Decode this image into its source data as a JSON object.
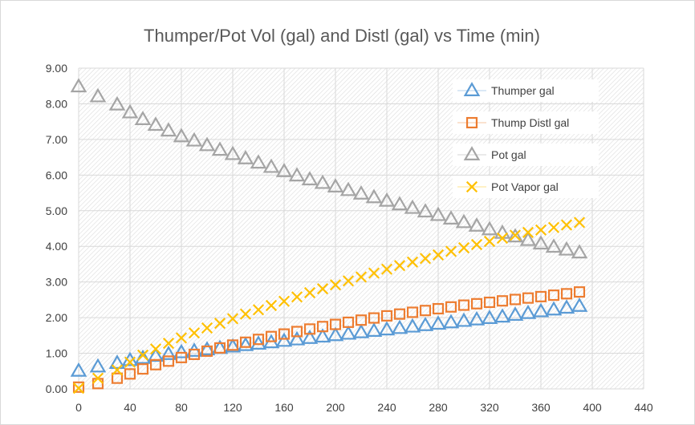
{
  "chart_data": {
    "type": "scatter",
    "title": "Thumper/Pot Vol (gal) and Distl (gal) vs Time (min)",
    "xlabel": "",
    "ylabel": "",
    "xlim": [
      0,
      440
    ],
    "ylim": [
      0,
      9
    ],
    "x_ticks": [
      0,
      40,
      80,
      120,
      160,
      200,
      240,
      280,
      320,
      360,
      400,
      440
    ],
    "x_tick_labels": [
      "0",
      "40",
      "80",
      "120",
      "160",
      "200",
      "240",
      "280",
      "320",
      "360",
      "400",
      "440"
    ],
    "y_ticks": [
      0,
      1,
      2,
      3,
      4,
      5,
      6,
      7,
      8,
      9
    ],
    "y_tick_labels": [
      "0.00",
      "1.00",
      "2.00",
      "3.00",
      "4.00",
      "5.00",
      "6.00",
      "7.00",
      "8.00",
      "9.00"
    ],
    "grid": true,
    "legend": "top-right",
    "series": [
      {
        "name": "Thumper gal",
        "marker": "triangle",
        "color": "#5B9BD5",
        "x": [
          0,
          15,
          30,
          40,
          50,
          60,
          70,
          80,
          90,
          100,
          110,
          120,
          130,
          140,
          150,
          160,
          170,
          180,
          190,
          200,
          210,
          220,
          230,
          240,
          250,
          260,
          270,
          280,
          290,
          300,
          310,
          320,
          330,
          340,
          350,
          360,
          370,
          380,
          390
        ],
        "y": [
          0.5,
          0.62,
          0.72,
          0.8,
          0.86,
          0.92,
          0.97,
          1.02,
          1.06,
          1.1,
          1.14,
          1.18,
          1.22,
          1.26,
          1.3,
          1.34,
          1.38,
          1.42,
          1.46,
          1.5,
          1.54,
          1.58,
          1.62,
          1.66,
          1.7,
          1.74,
          1.78,
          1.82,
          1.86,
          1.9,
          1.94,
          1.98,
          2.02,
          2.07,
          2.12,
          2.17,
          2.22,
          2.27,
          2.32
        ]
      },
      {
        "name": "Thump Distl gal",
        "marker": "square",
        "color": "#ED7D31",
        "x": [
          0,
          15,
          30,
          40,
          50,
          60,
          70,
          80,
          90,
          100,
          110,
          120,
          130,
          140,
          150,
          160,
          170,
          180,
          190,
          200,
          210,
          220,
          230,
          240,
          250,
          260,
          270,
          280,
          290,
          300,
          310,
          320,
          330,
          340,
          350,
          360,
          370,
          380,
          390
        ],
        "y": [
          0.05,
          0.15,
          0.3,
          0.42,
          0.56,
          0.68,
          0.78,
          0.88,
          0.97,
          1.06,
          1.15,
          1.23,
          1.31,
          1.39,
          1.47,
          1.54,
          1.61,
          1.68,
          1.75,
          1.81,
          1.87,
          1.93,
          1.99,
          2.05,
          2.1,
          2.15,
          2.2,
          2.25,
          2.3,
          2.35,
          2.39,
          2.43,
          2.47,
          2.51,
          2.55,
          2.59,
          2.63,
          2.67,
          2.72
        ]
      },
      {
        "name": "Pot  gal",
        "marker": "triangle",
        "color": "#A5A5A5",
        "x": [
          0,
          15,
          30,
          40,
          50,
          60,
          70,
          80,
          90,
          100,
          110,
          120,
          130,
          140,
          150,
          160,
          170,
          180,
          190,
          200,
          210,
          220,
          230,
          240,
          250,
          260,
          270,
          280,
          290,
          300,
          310,
          320,
          330,
          340,
          350,
          360,
          370,
          380,
          390
        ],
        "y": [
          8.48,
          8.2,
          7.97,
          7.75,
          7.56,
          7.4,
          7.24,
          7.08,
          6.96,
          6.83,
          6.7,
          6.58,
          6.46,
          6.34,
          6.22,
          6.1,
          5.98,
          5.87,
          5.77,
          5.67,
          5.57,
          5.47,
          5.37,
          5.27,
          5.17,
          5.07,
          4.97,
          4.87,
          4.77,
          4.67,
          4.57,
          4.47,
          4.37,
          4.27,
          4.17,
          4.07,
          3.98,
          3.9,
          3.82
        ]
      },
      {
        "name": "Pot Vapor gal",
        "marker": "x",
        "color": "#FFC000",
        "x": [
          0,
          15,
          30,
          40,
          50,
          60,
          70,
          80,
          90,
          100,
          110,
          120,
          130,
          140,
          150,
          160,
          170,
          180,
          190,
          200,
          210,
          220,
          230,
          240,
          250,
          260,
          270,
          280,
          290,
          300,
          310,
          320,
          330,
          340,
          350,
          360,
          370,
          380,
          390
        ],
        "y": [
          0.02,
          0.3,
          0.53,
          0.75,
          0.95,
          1.12,
          1.28,
          1.43,
          1.57,
          1.71,
          1.84,
          1.97,
          2.1,
          2.22,
          2.34,
          2.46,
          2.58,
          2.7,
          2.81,
          2.92,
          3.03,
          3.14,
          3.25,
          3.36,
          3.46,
          3.56,
          3.66,
          3.76,
          3.86,
          3.96,
          4.05,
          4.14,
          4.23,
          4.31,
          4.39,
          4.46,
          4.53,
          4.6,
          4.67
        ]
      }
    ]
  }
}
